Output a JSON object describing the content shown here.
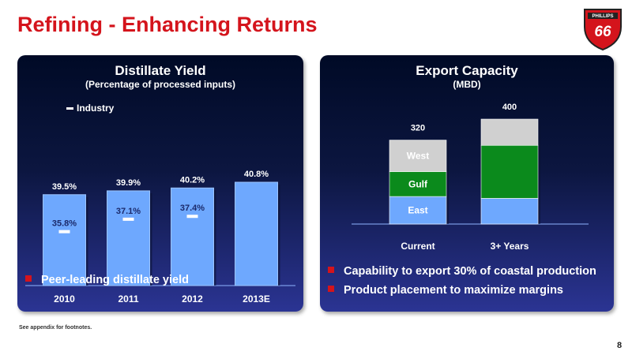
{
  "page": {
    "title": "Refining - Enhancing Returns",
    "logo_text": "PHILLIPS 66",
    "footnote": "See appendix for footnotes.",
    "page_number": "8"
  },
  "left_panel": {
    "title": "Distillate Yield",
    "subtitle": "(Percentage of processed inputs)",
    "legend_label": "Industry",
    "bullets": [
      "Peer-leading distillate yield"
    ]
  },
  "right_panel": {
    "title": "Export Capacity",
    "subtitle": "(MBD)",
    "bullets": [
      "Capability to export 30% of coastal production",
      "Product placement to maximize margins"
    ]
  },
  "colors": {
    "title_red": "#d4141c",
    "bar_blue": "#6ea8fe",
    "gulf_green": "#0b8a1c",
    "west_gray": "#d0d0d0"
  },
  "chart_data": [
    {
      "type": "bar",
      "title": "Distillate Yield",
      "subtitle": "(Percentage of processed inputs)",
      "categories": [
        "2010",
        "2011",
        "2012",
        "2013E"
      ],
      "series": [
        {
          "name": "Phillips 66",
          "values": [
            39.5,
            39.9,
            40.2,
            40.8
          ],
          "labels": [
            "39.5%",
            "39.9%",
            "40.2%",
            "40.8%"
          ]
        },
        {
          "name": "Industry",
          "values": [
            35.8,
            37.1,
            37.4,
            null
          ],
          "labels": [
            "35.8%",
            "37.1%",
            "37.4%",
            ""
          ]
        }
      ],
      "legend": "top-left",
      "grid": false
    },
    {
      "type": "bar",
      "stacked": true,
      "title": "Export Capacity",
      "subtitle": "(MBD)",
      "categories": [
        "Current",
        "3+ Years"
      ],
      "series": [
        {
          "name": "East",
          "values": [
            105,
            98
          ]
        },
        {
          "name": "Gulf",
          "values": [
            95,
            202
          ]
        },
        {
          "name": "West",
          "values": [
            120,
            100
          ]
        }
      ],
      "totals": [
        "320",
        "400"
      ],
      "grid": false
    }
  ]
}
